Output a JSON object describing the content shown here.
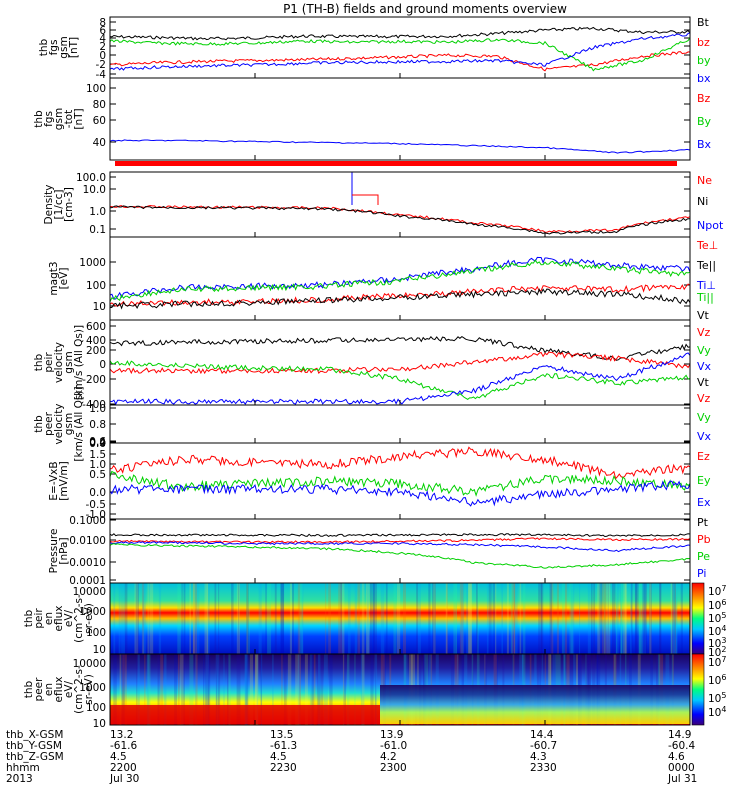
{
  "title": "P1 (TH-B) fields and ground moments overview",
  "colors": {
    "black": "#000000",
    "red": "#ff0000",
    "green": "#00d000",
    "blue": "#0000ff"
  },
  "panels": [
    {
      "id": "fgs-gsm",
      "ylabel": [
        "thb",
        "fgs",
        "gsm",
        "[nT]"
      ],
      "ytick_labels": [
        "8",
        "6",
        "4",
        "2",
        "0",
        "-2",
        "-4"
      ],
      "legend": [
        {
          "text": "Bt",
          "color": "black"
        },
        {
          "text": "bz",
          "color": "red"
        },
        {
          "text": "by",
          "color": "green"
        },
        {
          "text": "bx",
          "color": "blue"
        }
      ]
    },
    {
      "id": "fgs-gsm-tot",
      "ylabel": [
        "thb",
        "fgs",
        "gsm",
        "-tot",
        "[nT]"
      ],
      "ytick_labels": [
        "100",
        "80",
        "60",
        "40"
      ],
      "legend": [
        {
          "text": "Bz",
          "color": "red"
        },
        {
          "text": "By",
          "color": "green"
        },
        {
          "text": "Bx",
          "color": "blue"
        }
      ]
    },
    {
      "id": "density",
      "ylabel": [
        "Density",
        "[1/cc]",
        "[cm-3]"
      ],
      "ytick_labels": [
        "100.0",
        "10.0",
        "1.0",
        "0.1"
      ],
      "legend": [
        {
          "text": "Ne",
          "color": "red"
        },
        {
          "text": "Ni",
          "color": "black"
        },
        {
          "text": "Npot",
          "color": "blue"
        }
      ]
    },
    {
      "id": "temperature",
      "ylabel": [
        "magt3",
        "[eV]"
      ],
      "ytick_labels": [
        "1000",
        "100",
        "10"
      ],
      "legend": [
        {
          "text": "Te⊥",
          "color": "red"
        },
        {
          "text": "Te||",
          "color": "black"
        },
        {
          "text": "Ti⊥",
          "color": "blue"
        },
        {
          "text": "Ti||",
          "color": "green"
        }
      ]
    },
    {
      "id": "peir-velocity",
      "ylabel": [
        "thb",
        "peir",
        "velocity",
        "gsm",
        "[km/s (All Qs)]"
      ],
      "ytick_labels": [
        "600",
        "400",
        "200",
        "0",
        "-200",
        "-400"
      ],
      "legend": [
        {
          "text": "Vt",
          "color": "black"
        },
        {
          "text": "Vz",
          "color": "red"
        },
        {
          "text": "Vy",
          "color": "green"
        },
        {
          "text": "Vx",
          "color": "blue"
        }
      ]
    },
    {
      "id": "peer-velocity",
      "ylabel": [
        "thb",
        "peer",
        "velocity",
        "gsm",
        "[km/s (All Qs)]"
      ],
      "ytick_labels": [
        "1.0",
        "0.8",
        "0.6",
        "0.4",
        "0.2",
        "0.0"
      ],
      "legend": [
        {
          "text": "Vt",
          "color": "black"
        },
        {
          "text": "Vz",
          "color": "red"
        },
        {
          "text": "Vy",
          "color": "green"
        },
        {
          "text": "Vx",
          "color": "blue"
        }
      ]
    },
    {
      "id": "efield",
      "ylabel": [
        "E=-VxB",
        "[mV/m]"
      ],
      "ytick_labels": [
        "1.5",
        "1.0",
        "0.5",
        "0.0",
        "-0.5",
        "-1.0"
      ],
      "legend": [
        {
          "text": "Ez",
          "color": "red"
        },
        {
          "text": "Ey",
          "color": "green"
        },
        {
          "text": "Ex",
          "color": "blue"
        }
      ]
    },
    {
      "id": "pressure",
      "ylabel": [
        "Pressure",
        "[nPa]"
      ],
      "ytick_labels": [
        "0.1000",
        "0.0100",
        "0.0010",
        "0.0001"
      ],
      "legend": [
        {
          "text": "Pt",
          "color": "black"
        },
        {
          "text": "Pb",
          "color": "red"
        },
        {
          "text": "Pe",
          "color": "green"
        },
        {
          "text": "Pi",
          "color": "blue"
        }
      ]
    },
    {
      "id": "peir-eflux",
      "ylabel": [
        "thb",
        "peir",
        "en",
        "eflux",
        "eV/",
        "(cm^2-s-",
        "sr-eV)"
      ],
      "ytick_labels": [
        "10000",
        "1000",
        "100",
        "10"
      ],
      "colorbar_labels": [
        "10^7",
        "10^6",
        "10^5",
        "10^4",
        "10^3",
        "10^2"
      ]
    },
    {
      "id": "peer-eflux",
      "ylabel": [
        "thb",
        "peer",
        "en",
        "eflux",
        "eV/",
        "(cm^2-s-",
        "sr-eV)"
      ],
      "ytick_labels": [
        "10000",
        "1000",
        "100",
        "10"
      ],
      "colorbar_labels": [
        "10^7",
        "10^6",
        "10^5",
        "10^4"
      ]
    }
  ],
  "xaxis": {
    "row_labels": [
      "thb_X-GSM",
      "thb_Y-GSM",
      "thb_Z-GSM",
      "hhmm",
      "2013"
    ],
    "columns": [
      {
        "values": [
          "13.2",
          "-61.6",
          "4.5",
          "2200",
          "Jul 30"
        ]
      },
      {
        "values": [
          "13.5",
          "-61.3",
          "4.5",
          "2230",
          ""
        ]
      },
      {
        "values": [
          "13.9",
          "-61.0",
          "4.2",
          "2300",
          ""
        ]
      },
      {
        "values": [
          "14.4",
          "-60.7",
          "4.3",
          "2330",
          ""
        ]
      },
      {
        "values": [
          "14.9",
          "-60.4",
          "4.6",
          "0000",
          "Jul 31"
        ]
      }
    ]
  },
  "chart_data": [
    {
      "type": "line",
      "title": "P1 (TH-B) fields and ground moments overview",
      "ylabel": "thb fgs gsm [nT]",
      "ylim": [
        -5,
        9
      ],
      "x": [
        "2200",
        "2210",
        "2220",
        "2230",
        "2240",
        "2250",
        "2300",
        "2310",
        "2320",
        "2330",
        "2340",
        "2350",
        "0000"
      ],
      "series": [
        {
          "name": "Bt",
          "color": "black",
          "values": [
            4.5,
            4.3,
            4.0,
            4.2,
            4.6,
            4.5,
            4.5,
            4.6,
            5.2,
            6.0,
            6.4,
            5.5,
            5.6
          ]
        },
        {
          "name": "bz",
          "color": "red",
          "values": [
            -2,
            -1.5,
            -1.2,
            -1,
            -0.8,
            -0.5,
            -0.2,
            0.2,
            0,
            -3,
            -2,
            0,
            1
          ]
        },
        {
          "name": "by",
          "color": "green",
          "values": [
            3.5,
            3,
            2.8,
            3,
            3.5,
            3.2,
            3.4,
            3.2,
            3.8,
            3,
            -3,
            -1,
            4
          ]
        },
        {
          "name": "bx",
          "color": "blue",
          "values": [
            -3,
            -2.5,
            -2.2,
            -2,
            -1.6,
            -1.4,
            -1.3,
            -1.2,
            -1,
            -2,
            2,
            4,
            5
          ]
        }
      ]
    },
    {
      "type": "line",
      "ylabel": "thb fgs gsm -tot [nT]",
      "ylim": [
        20,
        100
      ],
      "x": [
        "2200",
        "2215",
        "2230",
        "2245",
        "2300",
        "2315",
        "2330",
        "2345",
        "0000"
      ],
      "series": [
        {
          "name": "Bx",
          "color": "blue",
          "values": [
            39,
            39,
            38,
            37,
            36,
            34,
            32,
            27,
            30
          ]
        }
      ]
    },
    {
      "type": "line",
      "ylabel": "Density [1/cc] [cm-3]",
      "yscale": "log",
      "ylim": [
        0.05,
        200
      ],
      "x": [
        "2200",
        "2215",
        "2230",
        "2245",
        "2300",
        "2315",
        "2330",
        "2345",
        "0000"
      ],
      "series": [
        {
          "name": "Ne",
          "color": "red",
          "values": [
            2.5,
            2.3,
            2.2,
            2.0,
            0.8,
            0.3,
            0.1,
            0.12,
            0.6
          ]
        },
        {
          "name": "Ni",
          "color": "black",
          "values": [
            2.3,
            2.1,
            2.0,
            1.8,
            0.7,
            0.25,
            0.08,
            0.1,
            0.5
          ]
        }
      ]
    },
    {
      "type": "line",
      "ylabel": "magt3 [eV]",
      "yscale": "log",
      "ylim": [
        8,
        3000
      ],
      "x": [
        "2200",
        "2215",
        "2230",
        "2245",
        "2300",
        "2315",
        "2330",
        "2345",
        "0000"
      ],
      "series": [
        {
          "name": "Ti⊥",
          "color": "blue",
          "values": [
            40,
            80,
            90,
            100,
            150,
            300,
            600,
            400,
            300
          ]
        },
        {
          "name": "Ti||",
          "color": "green",
          "values": [
            35,
            70,
            80,
            90,
            130,
            250,
            500,
            300,
            200
          ]
        },
        {
          "name": "Te⊥",
          "color": "red",
          "values": [
            25,
            28,
            30,
            35,
            45,
            60,
            80,
            70,
            90
          ]
        },
        {
          "name": "Te||",
          "color": "black",
          "values": [
            22,
            25,
            28,
            32,
            40,
            50,
            60,
            50,
            30
          ]
        }
      ]
    },
    {
      "type": "line",
      "ylabel": "thb peir velocity gsm [km/s (All Qs)]",
      "ylim": [
        -420,
        620
      ],
      "x": [
        "2200",
        "2215",
        "2230",
        "2245",
        "2300",
        "2315",
        "2330",
        "2345",
        "0000"
      ],
      "series": [
        {
          "name": "Vt",
          "color": "black",
          "values": [
            330,
            350,
            360,
            370,
            380,
            390,
            250,
            150,
            300
          ]
        },
        {
          "name": "Vz",
          "color": "red",
          "values": [
            0,
            0,
            0,
            0,
            20,
            100,
            200,
            150,
            50
          ]
        },
        {
          "name": "Vy",
          "color": "green",
          "values": [
            100,
            60,
            30,
            20,
            -100,
            -350,
            -50,
            -150,
            -80
          ]
        },
        {
          "name": "Vx",
          "color": "blue",
          "values": [
            -380,
            -380,
            -380,
            -380,
            -380,
            -250,
            50,
            -100,
            200
          ]
        }
      ]
    },
    {
      "type": "line",
      "ylabel": "thb peer velocity gsm [km/s (All Qs)]",
      "ylim": [
        0,
        1
      ],
      "x": [],
      "series": []
    },
    {
      "type": "line",
      "ylabel": "E=-VxB [mV/m]",
      "ylim": [
        -1.0,
        1.8
      ],
      "x": [
        "2200",
        "2215",
        "2230",
        "2245",
        "2300",
        "2315",
        "2330",
        "2345",
        "0000"
      ],
      "series": [
        {
          "name": "Ez",
          "color": "red",
          "values": [
            0.8,
            1.2,
            1.1,
            1.0,
            1.3,
            1.5,
            1.2,
            0.6,
            0.9
          ]
        },
        {
          "name": "Ey",
          "color": "green",
          "values": [
            0.6,
            0.2,
            0.3,
            0.4,
            0.3,
            0.0,
            0.5,
            0.4,
            0.2
          ]
        },
        {
          "name": "Ex",
          "color": "blue",
          "values": [
            0.1,
            0.1,
            0.1,
            0.1,
            0.0,
            -0.4,
            -0.1,
            0.1,
            0.3
          ]
        }
      ]
    },
    {
      "type": "line",
      "ylabel": "Pressure [nPa]",
      "yscale": "log",
      "ylim": [
        0.0001,
        0.15
      ],
      "x": [
        "2200",
        "2215",
        "2230",
        "2245",
        "2300",
        "2315",
        "2330",
        "2345",
        "0000"
      ],
      "series": [
        {
          "name": "Pt",
          "color": "black",
          "values": [
            0.025,
            0.024,
            0.024,
            0.023,
            0.024,
            0.025,
            0.025,
            0.022,
            0.025
          ]
        },
        {
          "name": "Pb",
          "color": "red",
          "values": [
            0.012,
            0.011,
            0.011,
            0.011,
            0.012,
            0.013,
            0.016,
            0.014,
            0.015
          ]
        },
        {
          "name": "Pi",
          "color": "blue",
          "values": [
            0.01,
            0.01,
            0.009,
            0.009,
            0.009,
            0.008,
            0.006,
            0.004,
            0.007
          ]
        },
        {
          "name": "Pe",
          "color": "green",
          "values": [
            0.008,
            0.007,
            0.006,
            0.005,
            0.003,
            0.001,
            0.0006,
            0.0008,
            0.0015
          ]
        }
      ]
    },
    {
      "type": "heatmap",
      "ylabel": "thb peir en eflux eV/(cm^2-s-sr-eV)",
      "yscale": "log",
      "ylim": [
        5,
        30000
      ],
      "colorbar_range": [
        "10^2",
        "10^7"
      ]
    },
    {
      "type": "heatmap",
      "ylabel": "thb peer en eflux eV/(cm^2-s-sr-eV)",
      "yscale": "log",
      "ylim": [
        5,
        30000
      ],
      "colorbar_range": [
        "10^4",
        "10^7"
      ]
    }
  ]
}
